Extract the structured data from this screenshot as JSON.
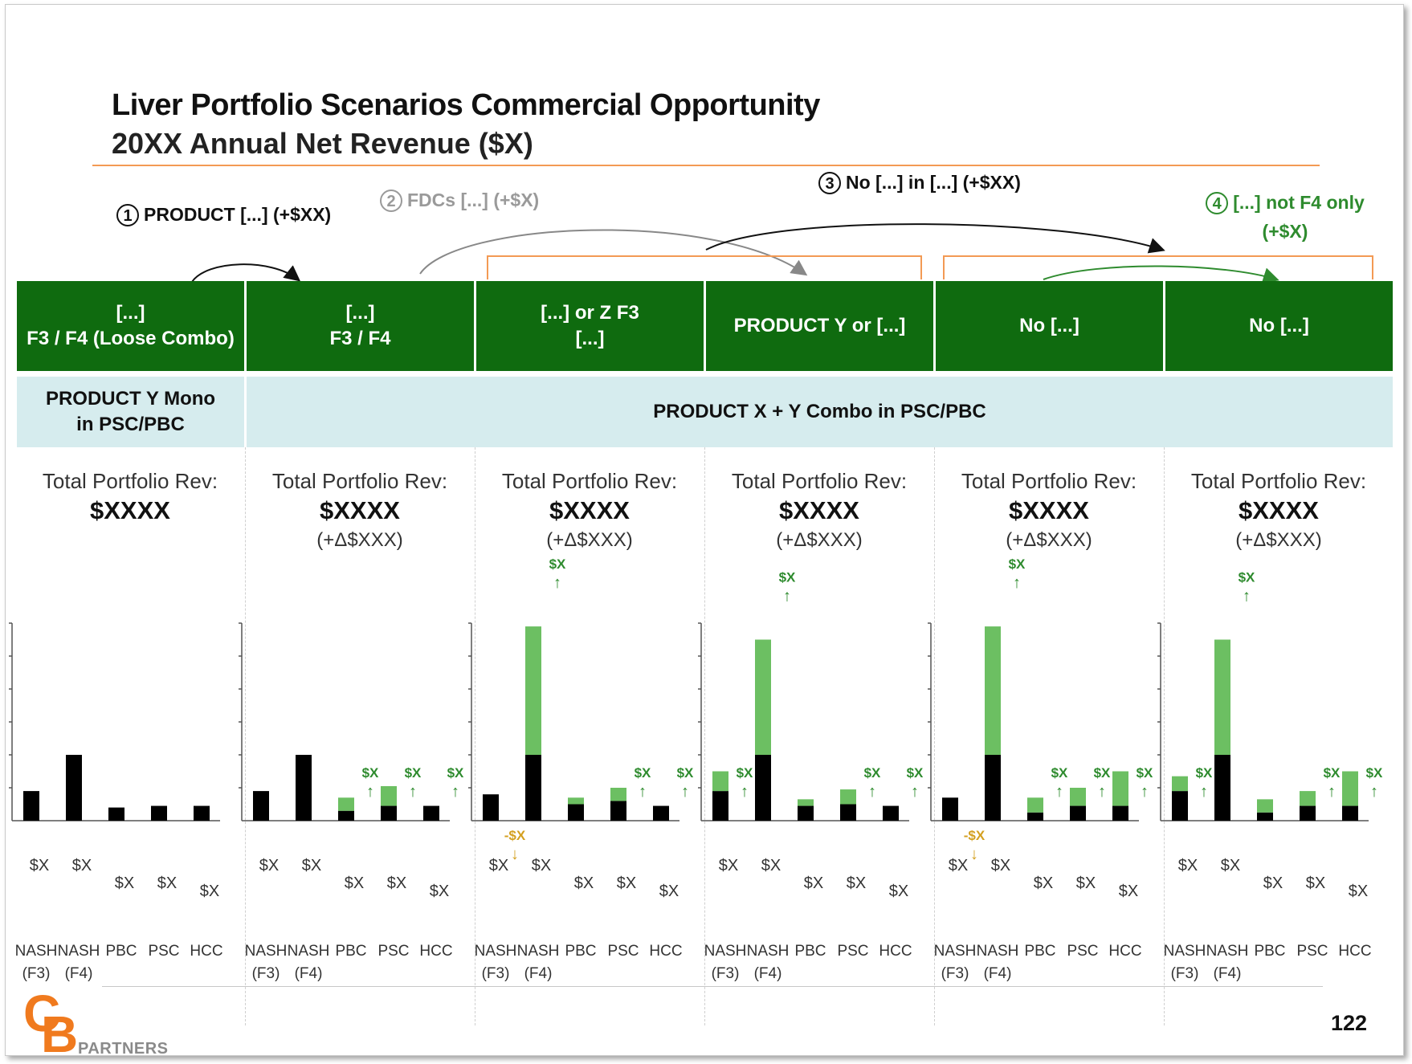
{
  "title": "Liver Portfolio Scenarios Commercial Opportunity",
  "subtitle": "20XX Annual Net Revenue ($X)",
  "scenarios": [
    {
      "num": "1",
      "text": "PRODUCT [...] (+$XX)"
    },
    {
      "num": "2",
      "text": "FDCs [...] (+$X)"
    },
    {
      "num": "3",
      "text": "No [...] in [...] (+$XX)"
    },
    {
      "num": "4",
      "text": "[...] not F4 only (+$X)"
    }
  ],
  "columns": [
    {
      "header": "[...]\nF3 / F4 (Loose Combo)",
      "rev_label": "Total Portfolio Rev:",
      "rev_value": "$XXXX",
      "rev_delta": ""
    },
    {
      "header": "[...]\nF3 / F4",
      "rev_label": "Total Portfolio Rev:",
      "rev_value": "$XXXX",
      "rev_delta": "(+Δ$XXX)"
    },
    {
      "header": "[...] or Z F3\n[...]",
      "rev_label": "Total Portfolio Rev:",
      "rev_value": "$XXXX",
      "rev_delta": "(+Δ$XXX)"
    },
    {
      "header": "PRODUCT Y or [...]",
      "rev_label": "Total Portfolio Rev:",
      "rev_value": "$XXXX",
      "rev_delta": "(+Δ$XXX)"
    },
    {
      "header": "No [...]",
      "rev_label": "Total Portfolio Rev:",
      "rev_value": "$XXXX",
      "rev_delta": "(+Δ$XXX)"
    },
    {
      "header": "No [...]",
      "rev_label": "Total Portfolio Rev:",
      "rev_value": "$XXXX",
      "rev_delta": "(+Δ$XXX)"
    }
  ],
  "bands": [
    {
      "text": "PRODUCT Y Mono\nin PSC/PBC"
    },
    {
      "text": "PRODUCT X + Y Combo in PSC/PBC"
    }
  ],
  "colors": {
    "header_green": "#0f6b0f",
    "band_blue": "#d6ecee",
    "base_black": "#000000",
    "increment_green": "#6cbf62",
    "up_arrow_green": "#2e8b2e",
    "down_arrow_orange": "#d4a020",
    "accent_orange": "#f39a54",
    "logo_orange": "#f07a1e"
  },
  "chart_data": [
    {
      "type": "bar",
      "stacked": true,
      "categories": [
        "NASH (F3)",
        "NASH (F4)",
        "PBC",
        "PSC",
        "HCC"
      ],
      "series": [
        {
          "values": [
            0.9,
            2.0,
            0.4,
            0.45,
            0.45
          ]
        },
        {
          "values": [
            0,
            0,
            0,
            0,
            0
          ]
        }
      ],
      "value_labels": [
        "$X",
        "$X",
        "$X",
        "$X",
        "$X"
      ],
      "change_labels": [
        "",
        "",
        "",
        "",
        ""
      ],
      "change_dir": [
        "",
        "",
        "",
        "",
        ""
      ],
      "ylim": [
        0,
        6
      ]
    },
    {
      "type": "bar",
      "stacked": true,
      "categories": [
        "NASH (F3)",
        "NASH (F4)",
        "PBC",
        "PSC",
        "HCC"
      ],
      "series": [
        {
          "values": [
            0.9,
            2.0,
            0.3,
            0.45,
            0.45
          ]
        },
        {
          "values": [
            0,
            0,
            0.4,
            0.6,
            0
          ]
        }
      ],
      "value_labels": [
        "$X",
        "$X",
        "$X",
        "$X",
        "$X"
      ],
      "change_labels": [
        "",
        "",
        "$X",
        "$X",
        "$X"
      ],
      "change_dir": [
        "",
        "",
        "up",
        "up",
        "up"
      ],
      "ylim": [
        0,
        6
      ]
    },
    {
      "type": "bar",
      "stacked": true,
      "categories": [
        "NASH (F3)",
        "NASH (F4)",
        "PBC",
        "PSC",
        "HCC"
      ],
      "series": [
        {
          "values": [
            0.8,
            2.0,
            0.5,
            0.6,
            0.45
          ]
        },
        {
          "values": [
            0,
            3.9,
            0.2,
            0.4,
            0
          ]
        }
      ],
      "value_labels": [
        "$X",
        "$X",
        "$X",
        "$X",
        "$X"
      ],
      "change_labels": [
        "-$X",
        "$X",
        "",
        "$X",
        "$X"
      ],
      "change_dir": [
        "down",
        "up",
        "",
        "up",
        "up"
      ],
      "ylim": [
        0,
        6
      ]
    },
    {
      "type": "bar",
      "stacked": true,
      "categories": [
        "NASH (F3)",
        "NASH (F4)",
        "PBC",
        "PSC",
        "HCC"
      ],
      "series": [
        {
          "values": [
            0.9,
            2.0,
            0.45,
            0.5,
            0.45
          ]
        },
        {
          "values": [
            0.6,
            3.5,
            0.2,
            0.45,
            0
          ]
        }
      ],
      "value_labels": [
        "$X",
        "$X",
        "$X",
        "$X",
        "$X"
      ],
      "change_labels": [
        "$X",
        "$X",
        "",
        "$X",
        "$X"
      ],
      "change_dir": [
        "up",
        "up",
        "",
        "up",
        "up"
      ],
      "ylim": [
        0,
        6
      ]
    },
    {
      "type": "bar",
      "stacked": true,
      "categories": [
        "NASH (F3)",
        "NASH (F4)",
        "PBC",
        "PSC",
        "HCC"
      ],
      "series": [
        {
          "values": [
            0.7,
            2.0,
            0.25,
            0.45,
            0.45
          ]
        },
        {
          "values": [
            0,
            3.9,
            0.45,
            0.55,
            1.05
          ]
        }
      ],
      "value_labels": [
        "$X",
        "$X",
        "$X",
        "$X",
        "$X"
      ],
      "change_labels": [
        "-$X",
        "$X",
        "$X",
        "$X",
        "$X"
      ],
      "change_dir": [
        "down",
        "up",
        "up",
        "up",
        "up"
      ],
      "ylim": [
        0,
        6
      ]
    },
    {
      "type": "bar",
      "stacked": true,
      "categories": [
        "NASH (F3)",
        "NASH (F4)",
        "PBC",
        "PSC",
        "HCC"
      ],
      "series": [
        {
          "values": [
            0.9,
            2.0,
            0.25,
            0.45,
            0.45
          ]
        },
        {
          "values": [
            0.45,
            3.5,
            0.4,
            0.45,
            1.05
          ]
        }
      ],
      "value_labels": [
        "$X",
        "$X",
        "$X",
        "$X",
        "$X"
      ],
      "change_labels": [
        "$X",
        "$X",
        "",
        "$X",
        "$X"
      ],
      "change_dir": [
        "up",
        "up",
        "",
        "up",
        "up"
      ],
      "ylim": [
        0,
        6
      ]
    }
  ],
  "page_number": "122",
  "logo": {
    "mark_c": "C",
    "mark_b": "B",
    "text": "PARTNERS"
  }
}
